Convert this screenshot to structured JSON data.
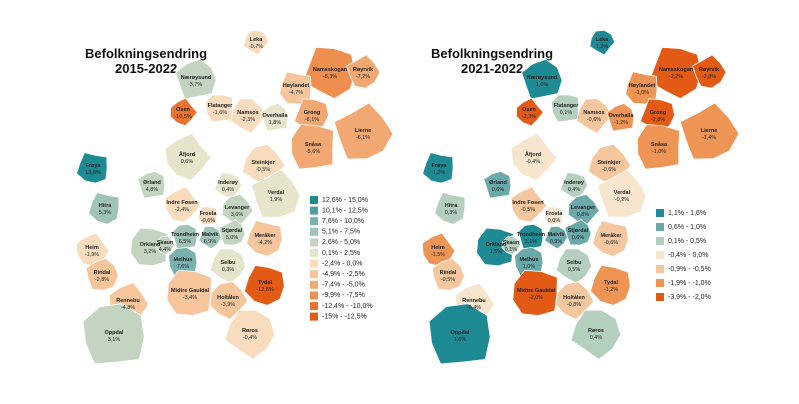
{
  "maps": [
    {
      "title": "Befolkningsendring",
      "period": "2015-2022",
      "legend": [
        {
          "label": "12,6% - 15,0%",
          "color": "#1d8a94"
        },
        {
          "label": "10,1% - 12,5%",
          "color": "#4c9ea3"
        },
        {
          "label": "7,6% - 10,0%",
          "color": "#78b1ae"
        },
        {
          "label": "5,1% - 7,5%",
          "color": "#9fc3b9"
        },
        {
          "label": "2,6% - 5,0%",
          "color": "#c3d5c1"
        },
        {
          "label": "0,1% - 2,5%",
          "color": "#e6e4cb"
        },
        {
          "label": "-2,4% - 0,0%",
          "color": "#f9dcbd"
        },
        {
          "label": "-4,9% - -2,5%",
          "color": "#f6c59c"
        },
        {
          "label": "-7,4% - -5,0%",
          "color": "#f2a873"
        },
        {
          "label": "-9,9% - -7,5%",
          "color": "#ee8e4f"
        },
        {
          "label": "-12,4% - -10,0%",
          "color": "#e8742f"
        },
        {
          "label": "-15% - -12,5%",
          "color": "#e35a14"
        }
      ],
      "municipalities": [
        {
          "name": "Leka",
          "value": "-0,7%",
          "color": "#f9dcbd"
        },
        {
          "name": "Nærøysund",
          "value": "3,7%",
          "color": "#c3d5c1"
        },
        {
          "name": "Namsskogan",
          "value": "-8,3%",
          "color": "#ee8e4f"
        },
        {
          "name": "Røyrvik",
          "value": "-7,2%",
          "color": "#f2a873"
        },
        {
          "name": "Høylandet",
          "value": "-4,7%",
          "color": "#f6c59c"
        },
        {
          "name": "Osen",
          "value": "-10,5%",
          "color": "#e8742f"
        },
        {
          "name": "Flatanger",
          "value": "-1,6%",
          "color": "#f9dcbd"
        },
        {
          "name": "Namsos",
          "value": "-2,3%",
          "color": "#f9dcbd"
        },
        {
          "name": "Overhalla",
          "value": "1,8%",
          "color": "#e6e4cb"
        },
        {
          "name": "Grong",
          "value": "-6,1%",
          "color": "#f2a873"
        },
        {
          "name": "Lierne",
          "value": "-6,1%",
          "color": "#f2a873"
        },
        {
          "name": "Frøya",
          "value": "13,6%",
          "color": "#1d8a94"
        },
        {
          "name": "Åfjord",
          "value": "0,6%",
          "color": "#e6e4cb"
        },
        {
          "name": "Snåsa",
          "value": "-5,6%",
          "color": "#f2a873"
        },
        {
          "name": "Steinkjer",
          "value": "-0,5%",
          "color": "#f9dcbd"
        },
        {
          "name": "Ørland",
          "value": "4,8%",
          "color": "#c3d5c1"
        },
        {
          "name": "Inderøy",
          "value": "0,4%",
          "color": "#e6e4cb"
        },
        {
          "name": "Verdal",
          "value": "1,9%",
          "color": "#e6e4cb"
        },
        {
          "name": "Hitra",
          "value": "5,3%",
          "color": "#9fc3b9"
        },
        {
          "name": "Indre Fosen",
          "value": "-2,4%",
          "color": "#f9dcbd"
        },
        {
          "name": "Frosta",
          "value": "-0,6%",
          "color": "#f9dcbd"
        },
        {
          "name": "Levanger",
          "value": "3,6%",
          "color": "#c3d5c1"
        },
        {
          "name": "Trondheim",
          "value": "6,5%",
          "color": "#9fc3b9"
        },
        {
          "name": "Malvik",
          "value": "6,9%",
          "color": "#9fc3b9"
        },
        {
          "name": "Stjørdal",
          "value": "5,0%",
          "color": "#c3d5c1"
        },
        {
          "name": "Meråker",
          "value": "-4,2%",
          "color": "#f6c59c"
        },
        {
          "name": "Heim",
          "value": "-1,9%",
          "color": "#f9dcbd"
        },
        {
          "name": "Orkland",
          "value": "3,2%",
          "color": "#c3d5c1"
        },
        {
          "name": "Skaun",
          "value": "4,4%",
          "color": "#c3d5c1"
        },
        {
          "name": "Melhus",
          "value": "7,6%",
          "color": "#78b1ae"
        },
        {
          "name": "Selbu",
          "value": "0,3%",
          "color": "#e6e4cb"
        },
        {
          "name": "Rindal",
          "value": "-2,8%",
          "color": "#f6c59c"
        },
        {
          "name": "Tydal",
          "value": "-12,8%",
          "color": "#e35a14"
        },
        {
          "name": "Rennebu",
          "value": "-4,8%",
          "color": "#f6c59c"
        },
        {
          "name": "Midtre Gauldal",
          "value": "-3,4%",
          "color": "#f6c59c"
        },
        {
          "name": "Holtålen",
          "value": "-3,9%",
          "color": "#f6c59c"
        },
        {
          "name": "Oppdal",
          "value": "3,1%",
          "color": "#c3d5c1"
        },
        {
          "name": "Røros",
          "value": "-0,4%",
          "color": "#f9dcbd"
        }
      ]
    },
    {
      "title": "Befolkningsendring",
      "period": "2021-2022",
      "legend": [
        {
          "label": "1,1% - 1,6%",
          "color": "#1d8a94"
        },
        {
          "label": "0,6% - 1,0%",
          "color": "#6aa9a9"
        },
        {
          "label": "0,1% - 0,5%",
          "color": "#b5cfbf"
        },
        {
          "label": "-0,4% - 0,0%",
          "color": "#f7e6cd"
        },
        {
          "label": "-0,9% - -0,5%",
          "color": "#f5c79f"
        },
        {
          "label": "-1,9% - -1,0%",
          "color": "#ee9556"
        },
        {
          "label": "-3,9% - -2,0%",
          "color": "#e35a14"
        }
      ],
      "municipalities": [
        {
          "name": "Leka",
          "value": "1,2%",
          "color": "#1d8a94"
        },
        {
          "name": "Nærøysund",
          "value": "1,6%",
          "color": "#1d8a94"
        },
        {
          "name": "Namsskogan",
          "value": "-2,2%",
          "color": "#e35a14"
        },
        {
          "name": "Røyrvik",
          "value": "-2,8%",
          "color": "#e35a14"
        },
        {
          "name": "Høylandet",
          "value": "-1,0%",
          "color": "#ee9556"
        },
        {
          "name": "Osen",
          "value": "-2,3%",
          "color": "#e35a14"
        },
        {
          "name": "Flatanger",
          "value": "0,1%",
          "color": "#b5cfbf"
        },
        {
          "name": "Namsos",
          "value": "-0,6%",
          "color": "#f5c79f"
        },
        {
          "name": "Overhalla",
          "value": "-1,2%",
          "color": "#ee9556"
        },
        {
          "name": "Grong",
          "value": "-2,8%",
          "color": "#e35a14"
        },
        {
          "name": "Lierne",
          "value": "-1,4%",
          "color": "#ee9556"
        },
        {
          "name": "Frøya",
          "value": "1,2%",
          "color": "#1d8a94"
        },
        {
          "name": "Åfjord",
          "value": "-0,4%",
          "color": "#f7e6cd"
        },
        {
          "name": "Snåsa",
          "value": "-1,0%",
          "color": "#ee9556"
        },
        {
          "name": "Steinkjer",
          "value": "-0,6%",
          "color": "#f5c79f"
        },
        {
          "name": "Ørland",
          "value": "0,6%",
          "color": "#6aa9a9"
        },
        {
          "name": "Inderøy",
          "value": "0,4%",
          "color": "#b5cfbf"
        },
        {
          "name": "Verdal",
          "value": "-0,2%",
          "color": "#f7e6cd"
        },
        {
          "name": "Hitra",
          "value": "0,3%",
          "color": "#b5cfbf"
        },
        {
          "name": "Indre Fosen",
          "value": "-0,5%",
          "color": "#f5c79f"
        },
        {
          "name": "Frosta",
          "value": "0,0%",
          "color": "#f7e6cd"
        },
        {
          "name": "Levanger",
          "value": "0,8%",
          "color": "#6aa9a9"
        },
        {
          "name": "Trondheim",
          "value": "1,1%",
          "color": "#1d8a94"
        },
        {
          "name": "Malvik",
          "value": "0,9%",
          "color": "#6aa9a9"
        },
        {
          "name": "Stjørdal",
          "value": "0,6%",
          "color": "#6aa9a9"
        },
        {
          "name": "Meråker",
          "value": "-0,6%",
          "color": "#f5c79f"
        },
        {
          "name": "Heim",
          "value": "-1,5%",
          "color": "#ee9556"
        },
        {
          "name": "Orkland",
          "value": "1,5%",
          "color": "#1d8a94"
        },
        {
          "name": "Skaun",
          "value": "0,1%",
          "color": "#b5cfbf"
        },
        {
          "name": "Melhus",
          "value": "1,0%",
          "color": "#6aa9a9"
        },
        {
          "name": "Selbu",
          "value": "0,5%",
          "color": "#b5cfbf"
        },
        {
          "name": "Rindal",
          "value": "-0,5%",
          "color": "#f5c79f"
        },
        {
          "name": "Tydal",
          "value": "-1,2%",
          "color": "#ee9556"
        },
        {
          "name": "Rennebu",
          "value": "-0,4%",
          "color": "#f7e6cd"
        },
        {
          "name": "Midtre Gauldal",
          "value": "-2,0%",
          "color": "#e35a14"
        },
        {
          "name": "Holtålen",
          "value": "-0,8%",
          "color": "#f5c79f"
        },
        {
          "name": "Oppdal",
          "value": "1,6%",
          "color": "#1d8a94"
        },
        {
          "name": "Røros",
          "value": "0,4%",
          "color": "#b5cfbf"
        }
      ]
    }
  ]
}
